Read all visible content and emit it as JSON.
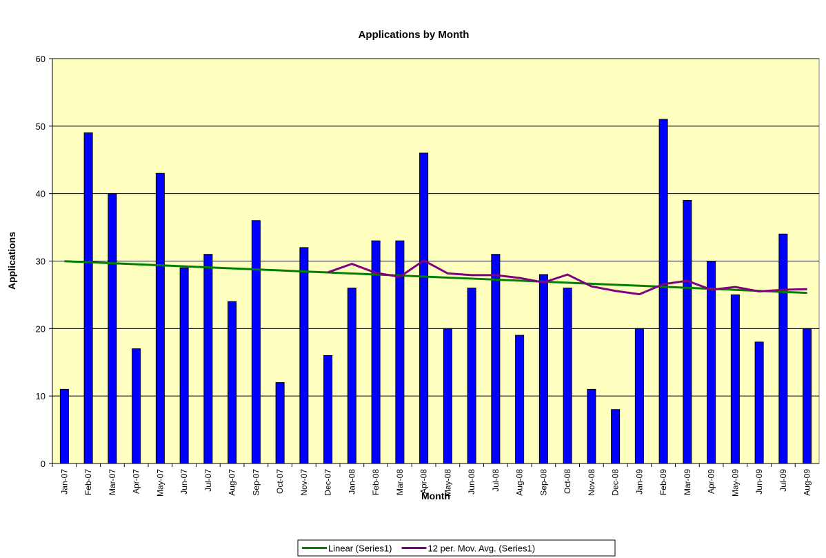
{
  "chart_data": {
    "type": "bar",
    "title": "Applications by Month",
    "x_label": "Month",
    "y_label": "Applications",
    "categories": [
      "Jan-07",
      "Feb-07",
      "Mar-07",
      "Apr-07",
      "May-07",
      "Jun-07",
      "Jul-07",
      "Aug-07",
      "Sep-07",
      "Oct-07",
      "Nov-07",
      "Dec-07",
      "Jan-08",
      "Feb-08",
      "Mar-08",
      "Apr-08",
      "May-08",
      "Jun-08",
      "Jul-08",
      "Aug-08",
      "Sep-08",
      "Oct-08",
      "Nov-08",
      "Dec-08",
      "Jan-09",
      "Feb-09",
      "Mar-09",
      "Apr-09",
      "May-09",
      "Jun-09",
      "Jul-09",
      "Aug-09"
    ],
    "values": [
      11,
      49,
      40,
      17,
      43,
      29,
      31,
      24,
      36,
      12,
      32,
      16,
      26,
      33,
      33,
      46,
      20,
      26,
      31,
      19,
      28,
      26,
      11,
      8,
      20,
      51,
      39,
      30,
      25,
      18,
      34,
      20
    ],
    "color": "#0000ff",
    "series": [
      {
        "name": "Linear (Series1)",
        "color": "#008000",
        "values": [
          29.98,
          29.83,
          29.68,
          29.53,
          29.37,
          29.22,
          29.07,
          28.92,
          28.77,
          28.62,
          28.46,
          28.31,
          28.16,
          28.01,
          27.86,
          27.7,
          27.55,
          27.4,
          27.25,
          27.1,
          26.95,
          26.79,
          26.64,
          26.49,
          26.34,
          26.19,
          26.04,
          25.88,
          25.73,
          25.58,
          25.43,
          25.28
        ]
      },
      {
        "name": "12 per. Mov. Avg. (Series1)",
        "color": "#800080",
        "values": [
          null,
          null,
          null,
          null,
          null,
          null,
          null,
          null,
          null,
          null,
          null,
          28.33,
          29.58,
          28.25,
          27.67,
          30.08,
          28.17,
          27.92,
          27.92,
          27.5,
          26.83,
          28.0,
          26.25,
          25.58,
          25.08,
          26.58,
          27.08,
          25.75,
          26.17,
          25.5,
          25.75,
          25.83
        ]
      }
    ],
    "ylim": [
      0,
      60
    ],
    "yticks": [
      0,
      10,
      20,
      30,
      40,
      50,
      60
    ],
    "grid": true,
    "legend": "bottom"
  }
}
